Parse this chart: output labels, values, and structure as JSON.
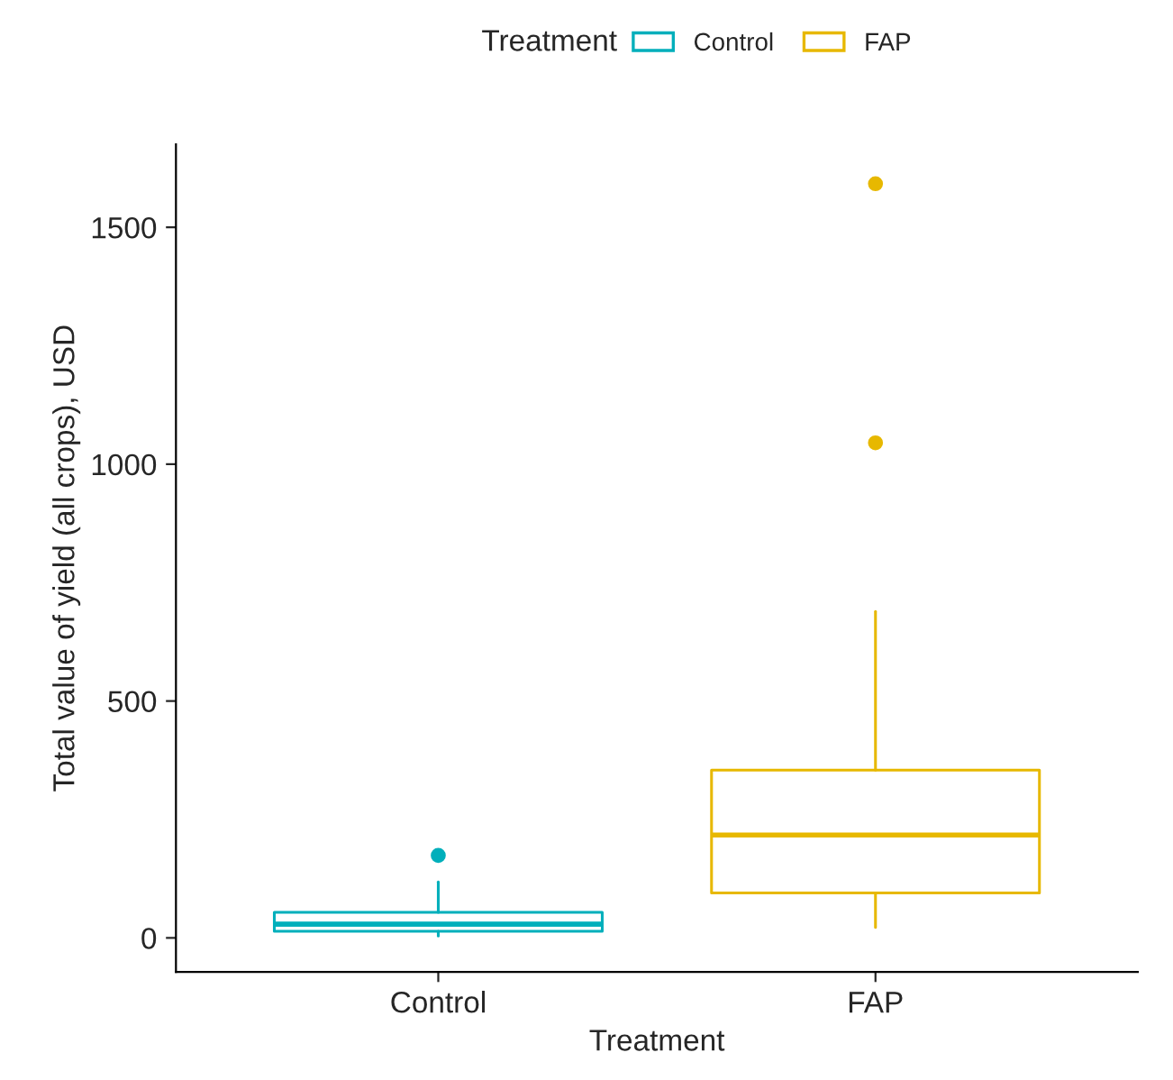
{
  "chart_data": {
    "type": "box",
    "xlabel": "Treatment",
    "ylabel": "Total value of yield (all crops), USD",
    "legend_title": "Treatment",
    "legend": "top",
    "categories": [
      "Control",
      "FAP"
    ],
    "series": [
      {
        "name": "Control",
        "color": "#00afbb",
        "boxes": [
          {
            "low": 4,
            "q1": 14,
            "median": 29,
            "q3": 54,
            "high": 118,
            "outliers": [
              174
            ]
          },
          null
        ]
      },
      {
        "name": "FAP",
        "color": "#e7b800",
        "boxes": [
          null,
          {
            "low": 22,
            "q1": 95,
            "median": 217,
            "q3": 354,
            "high": 689,
            "outliers": [
              1045,
              1592
            ]
          }
        ]
      }
    ],
    "ylim": [
      -72,
      1675
    ],
    "yticks": [
      0,
      500,
      1000,
      1500
    ],
    "grid": false
  }
}
